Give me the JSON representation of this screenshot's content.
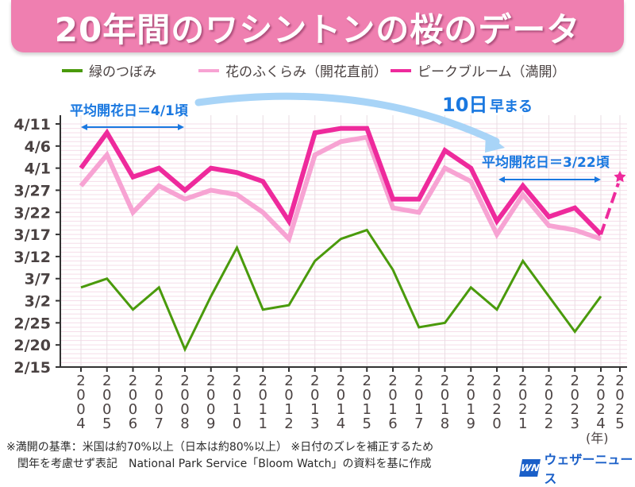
{
  "title": "20年間のワシントンの桜のデータ",
  "legend": [
    {
      "label": "緑のつぼみ",
      "color": "#4a9a0c"
    },
    {
      "label": "花のふくらみ（開花直前）",
      "color": "#f7a3d3"
    },
    {
      "label": "ピークブルーム（満開）",
      "color": "#ee2a9c"
    }
  ],
  "annotations": {
    "avg_early": "平均開花日＝4/1頃",
    "avg_late": "平均開花日＝3/22頃",
    "shift_big": "10日",
    "shift_small": "早まる",
    "annotation_color": "#1a78e0",
    "arrow_color": "#a8d4f7"
  },
  "year_unit": "(年)",
  "footnotes": [
    "※満開の基準：米国は約70%以上（日本は約80%以上） ※日付のズレを補正するため",
    "　閏年を考慮せず表記　National Park Service「Bloom Watch」の資料を基に作成"
  ],
  "logo": {
    "mark": "WN",
    "text": "ウェザーニュース",
    "color": "#1a5fc8"
  },
  "chart_data": {
    "type": "line",
    "title": "20年間のワシントンの桜のデータ",
    "xlabel": "(年)",
    "ylabel": "",
    "x": [
      "2004",
      "2005",
      "2006",
      "2007",
      "2008",
      "2009",
      "2010",
      "2011",
      "2012",
      "2013",
      "2014",
      "2015",
      "2016",
      "2017",
      "2018",
      "2019",
      "2020",
      "2021",
      "2022",
      "2023",
      "2024",
      "2025"
    ],
    "y_ticks": [
      "4/11",
      "4/6",
      "4/1",
      "3/27",
      "3/22",
      "3/17",
      "3/12",
      "3/7",
      "3/2",
      "2/25",
      "2/20",
      "2/15"
    ],
    "ylim": [
      "2/15",
      "4/11"
    ],
    "grid": true,
    "legend_position": "top",
    "series": [
      {
        "name": "緑のつぼみ",
        "color": "#4a9a0c",
        "values": [
          "3/5",
          "3/7",
          "2/28",
          "3/5",
          "2/19",
          "3/3",
          "3/14",
          "2/28",
          "3/1",
          "3/11",
          "3/16",
          "3/18",
          "3/9",
          "2/24",
          "2/25",
          "3/5",
          "2/28",
          "3/11",
          "3/3",
          "2/23",
          "3/3"
        ]
      },
      {
        "name": "花のふくらみ（開花直前）",
        "color": "#f7a3d3",
        "values": [
          "3/28",
          "4/4",
          "3/22",
          "3/28",
          "3/25",
          "3/27",
          "3/26",
          "3/22",
          "3/16",
          "4/4",
          "4/7",
          "4/8",
          "3/23",
          "3/22",
          "4/1",
          "3/29",
          "3/17",
          "3/26",
          "3/19",
          "3/18",
          "3/16"
        ]
      },
      {
        "name": "ピークブルーム（満開）",
        "color": "#ee2a9c",
        "values": [
          "4/1",
          "4/9",
          "3/30",
          "4/1",
          "3/27",
          "4/1",
          "3/31",
          "3/29",
          "3/20",
          "4/9",
          "4/10",
          "4/10",
          "3/25",
          "3/25",
          "4/5",
          "4/1",
          "3/20",
          "3/28",
          "3/21",
          "3/23",
          "3/17"
        ],
        "forecast": {
          "x": "2025",
          "value": "3/30",
          "style": "dashed",
          "marker": "sakura"
        }
      }
    ],
    "annotations": [
      {
        "text": "平均開花日＝4/1頃",
        "span": [
          "2004",
          "2008"
        ]
      },
      {
        "text": "平均開花日＝3/22頃",
        "span": [
          "2020",
          "2024"
        ]
      },
      {
        "text": "10日早まる"
      }
    ]
  }
}
